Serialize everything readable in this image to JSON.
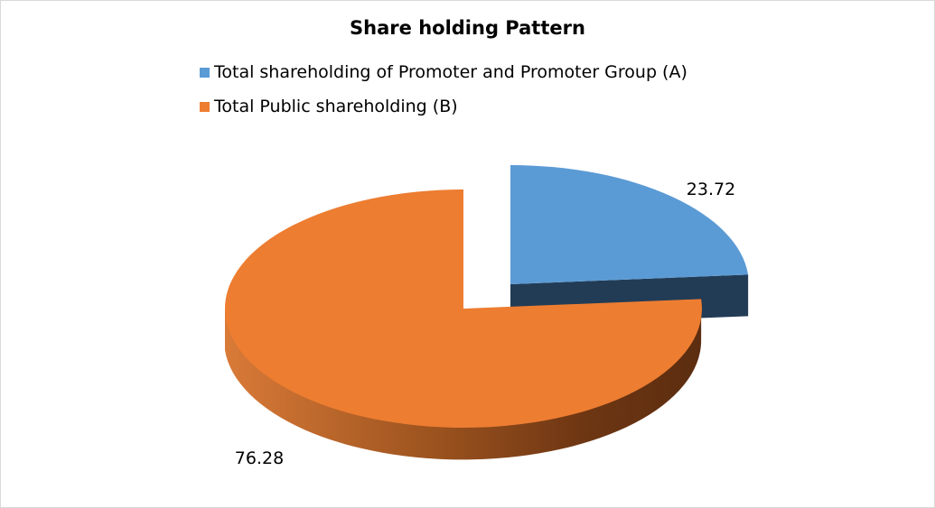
{
  "chart_data": {
    "type": "pie",
    "style": "3d-exploded",
    "title": "Share holding Pattern",
    "legend_position": "top",
    "categories": [
      "Total shareholding of Promoter and Promoter Group (A)",
      "Total Public shareholding (B)"
    ],
    "values": [
      23.72,
      76.28
    ],
    "data_labels": [
      "23.72",
      "76.28"
    ],
    "colors": [
      "#5b9bd5",
      "#ed7d31"
    ]
  }
}
